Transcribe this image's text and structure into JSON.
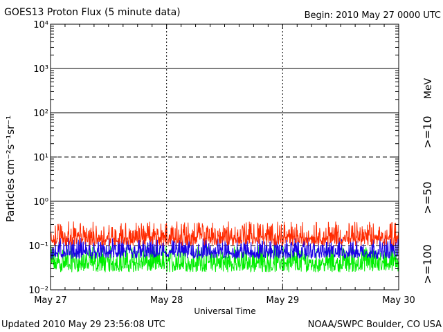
{
  "header": {
    "title": "GOES13 Proton Flux (5 minute data)",
    "begin": "Begin: 2010 May 27 0000 UTC"
  },
  "footer": {
    "updated": "Updated 2010 May 29 23:56:08 UTC",
    "credit": "NOAA/SWPC Boulder, CO USA"
  },
  "colors": {
    "ge10": "#ff2a00",
    "ge50": "#1a00e6",
    "ge100": "#00ee00"
  },
  "chart_data": {
    "type": "line",
    "title": "GOES13 Proton Flux (5 minute data)",
    "xlabel": "Universal Time",
    "ylabel": "Particles cm⁻²s⁻¹sr⁻¹",
    "yscale": "log",
    "ylim": [
      0.01,
      10000
    ],
    "y_ticks": [
      "10⁻²",
      "10⁻¹",
      "10⁰",
      "10¹",
      "10²",
      "10³",
      "10⁴"
    ],
    "x_ticks": [
      "May 27",
      "May 28",
      "May 29",
      "May 30"
    ],
    "xlim": [
      "2010-05-27 00:00",
      "2010-05-30 00:00"
    ],
    "grid": "horizontal lines at 10^0 to 10^3; dashed at 10^1; dashed line at 10^-1",
    "unit_label": "MeV",
    "series": [
      {
        "name": ">=10",
        "typical_flux": 0.15,
        "range": [
          0.1,
          0.35
        ]
      },
      {
        "name": ">=50",
        "typical_flux": 0.07,
        "range": [
          0.05,
          0.15
        ]
      },
      {
        "name": ">=100",
        "typical_flux": 0.04,
        "range": [
          0.025,
          0.1
        ]
      }
    ]
  }
}
